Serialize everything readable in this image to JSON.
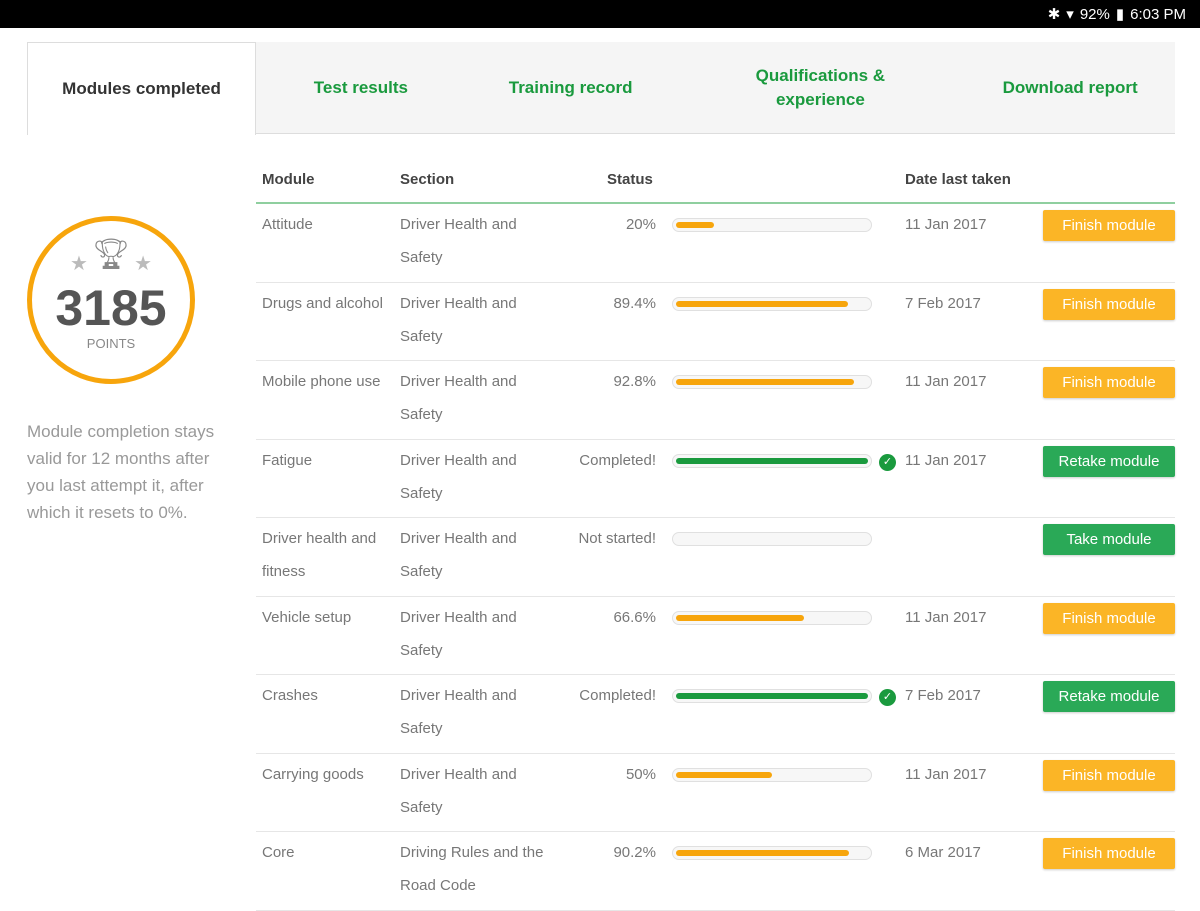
{
  "status_bar": {
    "icons": [
      "bluetooth-icon",
      "wifi-icon",
      "battery-icon"
    ],
    "battery": "92%",
    "time": "6:03 PM"
  },
  "tabs": [
    {
      "label": "Modules completed",
      "active": true
    },
    {
      "label": "Test results"
    },
    {
      "label": "Training record"
    },
    {
      "label": "Qualifications & experience"
    },
    {
      "label": "Download report"
    }
  ],
  "points": {
    "value": "3185",
    "label": "POINTS"
  },
  "note": "Module completion stays valid for 12 months after you last attempt it, after which it resets to 0%.",
  "colors": {
    "accent": "#1a9a3e",
    "orange": "#f7a50c",
    "button_orange": "#fbb526",
    "button_green": "#2aa957"
  },
  "table": {
    "headers": {
      "module": "Module",
      "section": "Section",
      "status": "Status",
      "date": "Date last taken"
    },
    "rows": [
      {
        "module": "Attitude",
        "section": "Driver Health and Safety",
        "status": "20%",
        "progress": 20,
        "date": "11 Jan 2017",
        "action": "Finish module"
      },
      {
        "module": "Drugs and alcohol",
        "section": "Driver Health and Safety",
        "status": "89.4%",
        "progress": 89.4,
        "date": "7 Feb 2017",
        "action": "Finish module"
      },
      {
        "module": "Mobile phone use",
        "section": "Driver Health and Safety",
        "status": "92.8%",
        "progress": 92.8,
        "date": "11 Jan 2017",
        "action": "Finish module"
      },
      {
        "module": "Fatigue",
        "section": "Driver Health and Safety",
        "status": "Completed!",
        "progress": 100,
        "completed": true,
        "date": "11 Jan 2017",
        "action": "Retake module"
      },
      {
        "module": "Driver health and fitness",
        "section": "Driver Health and Safety",
        "status": "Not started!",
        "progress": 0,
        "date": "",
        "action": "Take module"
      },
      {
        "module": "Vehicle setup",
        "section": "Driver Health and Safety",
        "status": "66.6%",
        "progress": 66.6,
        "date": "11 Jan 2017",
        "action": "Finish module"
      },
      {
        "module": "Crashes",
        "section": "Driver Health and Safety",
        "status": "Completed!",
        "progress": 100,
        "completed": true,
        "date": "7 Feb 2017",
        "action": "Retake module"
      },
      {
        "module": "Carrying goods",
        "section": "Driver Health and Safety",
        "status": "50%",
        "progress": 50,
        "date": "11 Jan 2017",
        "action": "Finish module"
      },
      {
        "module": "Core",
        "section": "Driving Rules and the Road Code",
        "status": "90.2%",
        "progress": 90.2,
        "date": "6 Mar 2017",
        "action": "Finish module"
      }
    ]
  }
}
